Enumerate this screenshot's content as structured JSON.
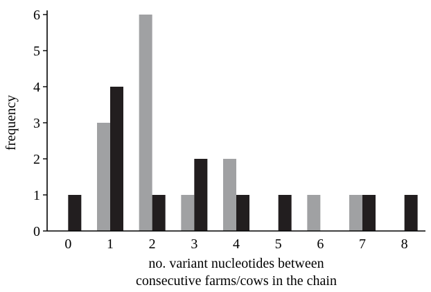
{
  "chart_data": {
    "type": "bar",
    "title": "",
    "xlabel_lines": [
      "no. variant nucleotides between",
      "consecutive farms/cows in the chain"
    ],
    "ylabel": "frequency",
    "categories": [
      "0",
      "1",
      "2",
      "3",
      "4",
      "5",
      "6",
      "7",
      "8"
    ],
    "yticks": [
      "0",
      "1",
      "2",
      "3",
      "4",
      "5",
      "6"
    ],
    "ylim": [
      0,
      6
    ],
    "grid": false,
    "legend": "none",
    "series": [
      {
        "color": "#a0a1a3",
        "values": [
          0,
          3,
          6,
          1,
          2,
          0,
          1,
          1,
          0
        ]
      },
      {
        "color": "#221e1f",
        "values": [
          1,
          4,
          1,
          2,
          1,
          1,
          0,
          1,
          1
        ]
      }
    ]
  }
}
